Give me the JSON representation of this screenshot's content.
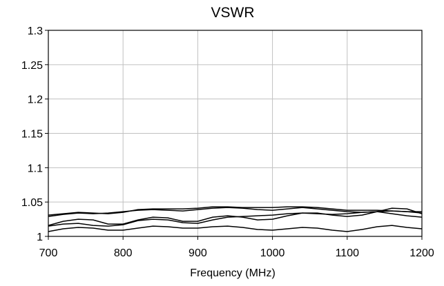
{
  "chart_data": {
    "type": "line",
    "title": "VSWR",
    "xlabel": "Frequency (MHz)",
    "ylabel": "",
    "xlim": [
      700,
      1200
    ],
    "ylim": [
      1,
      1.3
    ],
    "xticks": [
      700,
      800,
      900,
      1000,
      1100,
      1200
    ],
    "yticks": [
      1,
      1.05,
      1.1,
      1.15,
      1.2,
      1.25,
      1.3
    ],
    "xtick_labels": [
      "700",
      "800",
      "900",
      "1000",
      "1100",
      "1200"
    ],
    "ytick_labels": [
      "1",
      "1.05",
      "1.1",
      "1.15",
      "1.2",
      "1.25",
      "1.3"
    ],
    "grid": true,
    "legend": "none",
    "line_color": "#000000",
    "grid_color": "#c0c0c0",
    "series": [
      {
        "x": [
          700,
          720,
          740,
          760,
          780,
          800,
          820,
          840,
          860,
          880,
          900,
          920,
          940,
          960,
          980,
          1000,
          1020,
          1040,
          1060,
          1080,
          1100,
          1120,
          1140,
          1160,
          1180,
          1200
        ],
        "values": [
          1.031,
          1.033,
          1.035,
          1.034,
          1.033,
          1.035,
          1.039,
          1.04,
          1.04,
          1.04,
          1.041,
          1.043,
          1.043,
          1.042,
          1.042,
          1.042,
          1.043,
          1.043,
          1.042,
          1.04,
          1.038,
          1.038,
          1.038,
          1.037,
          1.036,
          1.036
        ]
      },
      {
        "x": [
          700,
          720,
          740,
          760,
          780,
          800,
          820,
          840,
          860,
          880,
          900,
          920,
          940,
          960,
          980,
          1000,
          1020,
          1040,
          1060,
          1080,
          1100,
          1120,
          1140,
          1160,
          1180,
          1200
        ],
        "values": [
          1.029,
          1.032,
          1.034,
          1.033,
          1.034,
          1.036,
          1.038,
          1.039,
          1.038,
          1.037,
          1.039,
          1.041,
          1.042,
          1.041,
          1.039,
          1.038,
          1.04,
          1.042,
          1.04,
          1.038,
          1.036,
          1.035,
          1.036,
          1.037,
          1.036,
          1.034
        ]
      },
      {
        "x": [
          700,
          720,
          740,
          760,
          780,
          800,
          820,
          840,
          860,
          880,
          900,
          920,
          940,
          960,
          980,
          1000,
          1020,
          1040,
          1060,
          1080,
          1100,
          1120,
          1140,
          1160,
          1180,
          1200
        ],
        "values": [
          1.016,
          1.022,
          1.025,
          1.024,
          1.018,
          1.018,
          1.024,
          1.028,
          1.027,
          1.022,
          1.022,
          1.028,
          1.03,
          1.028,
          1.024,
          1.025,
          1.03,
          1.034,
          1.034,
          1.031,
          1.029,
          1.031,
          1.036,
          1.041,
          1.04,
          1.033
        ]
      },
      {
        "x": [
          700,
          720,
          740,
          760,
          780,
          800,
          820,
          840,
          860,
          880,
          900,
          920,
          940,
          960,
          980,
          1000,
          1020,
          1040,
          1060,
          1080,
          1100,
          1120,
          1140,
          1160,
          1180,
          1200
        ],
        "values": [
          1.015,
          1.018,
          1.019,
          1.016,
          1.015,
          1.017,
          1.023,
          1.025,
          1.024,
          1.02,
          1.019,
          1.024,
          1.028,
          1.029,
          1.03,
          1.031,
          1.033,
          1.034,
          1.033,
          1.032,
          1.033,
          1.035,
          1.036,
          1.033,
          1.03,
          1.028
        ]
      },
      {
        "x": [
          700,
          720,
          740,
          760,
          780,
          800,
          820,
          840,
          860,
          880,
          900,
          920,
          940,
          960,
          980,
          1000,
          1020,
          1040,
          1060,
          1080,
          1100,
          1120,
          1140,
          1160,
          1180,
          1200
        ],
        "values": [
          1.007,
          1.011,
          1.013,
          1.012,
          1.009,
          1.009,
          1.012,
          1.015,
          1.014,
          1.012,
          1.012,
          1.014,
          1.015,
          1.013,
          1.01,
          1.009,
          1.011,
          1.013,
          1.012,
          1.009,
          1.007,
          1.01,
          1.014,
          1.016,
          1.013,
          1.011
        ]
      }
    ]
  }
}
